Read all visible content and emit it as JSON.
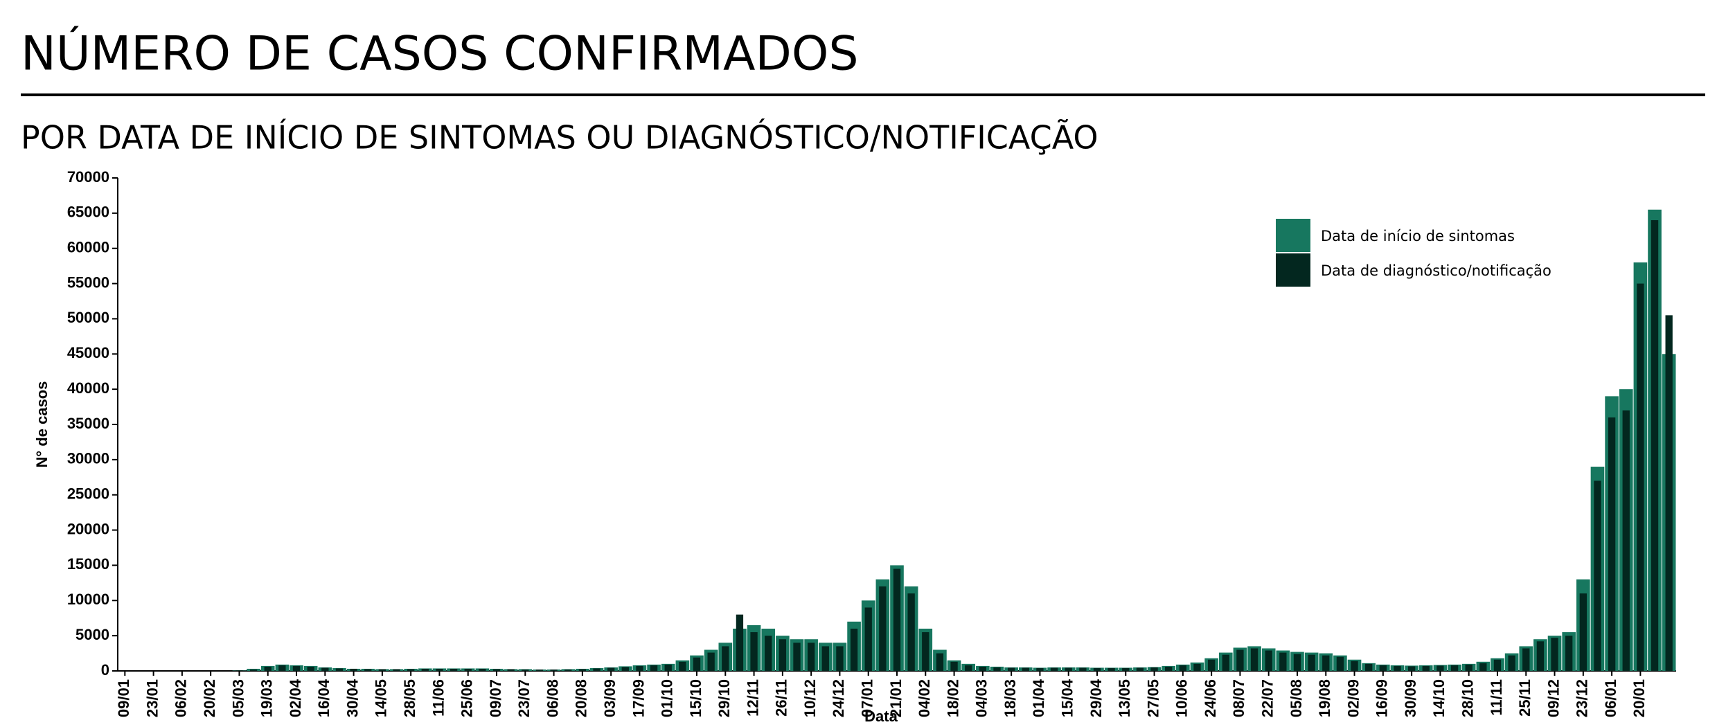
{
  "chart_data": {
    "type": "bar",
    "title": "NÚMERO DE CASOS CONFIRMADOS",
    "subtitle": "POR DATA DE INÍCIO DE SINTOMAS OU DIAGNÓSTICO/NOTIFICAÇÃO",
    "x_label": "Data",
    "y_label": "N° de casos",
    "categories": [
      "09/01",
      null,
      "23/01",
      null,
      "06/02",
      null,
      "20/02",
      null,
      "05/03",
      null,
      "19/03",
      null,
      "02/04",
      null,
      "16/04",
      null,
      "30/04",
      null,
      "14/05",
      null,
      "28/05",
      null,
      "11/06",
      null,
      "25/06",
      null,
      "09/07",
      null,
      "23/07",
      null,
      "06/08",
      null,
      "20/08",
      null,
      "03/09",
      null,
      "17/09",
      null,
      "01/10",
      null,
      "15/10",
      null,
      "29/10",
      null,
      "12/11",
      null,
      "26/11",
      null,
      "10/12",
      null,
      "24/12",
      null,
      "07/01",
      null,
      "21/01",
      null,
      "04/02",
      null,
      "18/02",
      null,
      "04/03",
      null,
      "18/03",
      null,
      "01/04",
      null,
      "15/04",
      null,
      "29/04",
      null,
      "13/05",
      null,
      "27/05",
      null,
      "10/06",
      null,
      "24/06",
      null,
      "08/07",
      null,
      "22/07",
      null,
      "05/08",
      null,
      "19/08",
      null,
      "02/09",
      null,
      "16/09",
      null,
      "30/09",
      null,
      "14/10",
      null,
      "28/10",
      null,
      "11/11",
      null,
      "25/11",
      null,
      "09/12",
      null,
      "23/12",
      null,
      "06/01",
      null,
      "20/01",
      null,
      null
    ],
    "series": [
      {
        "name": "Data de início de sintomas",
        "color": "#17775f",
        "values": [
          0,
          0,
          0,
          0,
          0,
          0,
          0,
          0,
          50,
          300,
          700,
          900,
          800,
          700,
          500,
          400,
          300,
          300,
          250,
          250,
          300,
          350,
          350,
          350,
          350,
          350,
          300,
          250,
          250,
          200,
          200,
          250,
          300,
          400,
          500,
          650,
          800,
          900,
          1000,
          1500,
          2200,
          3000,
          4000,
          6000,
          6500,
          6000,
          5000,
          4500,
          4500,
          4000,
          4000,
          7000,
          10000,
          13000,
          15000,
          12000,
          6000,
          3000,
          1500,
          1000,
          700,
          600,
          500,
          500,
          450,
          500,
          500,
          500,
          450,
          450,
          450,
          500,
          550,
          700,
          900,
          1200,
          1800,
          2600,
          3300,
          3500,
          3200,
          2900,
          2700,
          2600,
          2500,
          2200,
          1600,
          1100,
          900,
          800,
          750,
          800,
          850,
          900,
          1000,
          1300,
          1800,
          2500,
          3500,
          4500,
          5000,
          5500,
          13000,
          29000,
          39000,
          40000,
          58000,
          65500,
          45000
        ]
      },
      {
        "name": "Data de diagnóstico/notificação",
        "color": "#03271f",
        "values": [
          0,
          0,
          0,
          0,
          0,
          0,
          0,
          0,
          30,
          200,
          600,
          800,
          700,
          600,
          450,
          350,
          300,
          250,
          250,
          250,
          250,
          300,
          300,
          300,
          300,
          300,
          250,
          250,
          200,
          200,
          200,
          200,
          250,
          350,
          450,
          550,
          700,
          800,
          900,
          1300,
          1900,
          2600,
          3500,
          8000,
          5500,
          5000,
          4500,
          4000,
          4000,
          3500,
          3500,
          6000,
          9000,
          12000,
          14500,
          11000,
          5500,
          2500,
          1300,
          800,
          600,
          500,
          450,
          450,
          400,
          450,
          450,
          450,
          400,
          400,
          400,
          450,
          500,
          600,
          800,
          1000,
          1600,
          2300,
          3000,
          3200,
          2900,
          2600,
          2400,
          2300,
          2200,
          2000,
          1400,
          1000,
          800,
          700,
          650,
          700,
          750,
          800,
          900,
          1100,
          1600,
          2200,
          3200,
          4200,
          4700,
          5000,
          11000,
          27000,
          36000,
          37000,
          55000,
          64000,
          50500
        ]
      }
    ],
    "ylim": [
      0,
      70000
    ],
    "yticks": [
      0,
      5000,
      10000,
      15000,
      20000,
      25000,
      30000,
      35000,
      40000,
      45000,
      50000,
      55000,
      60000,
      65000,
      70000
    ]
  }
}
